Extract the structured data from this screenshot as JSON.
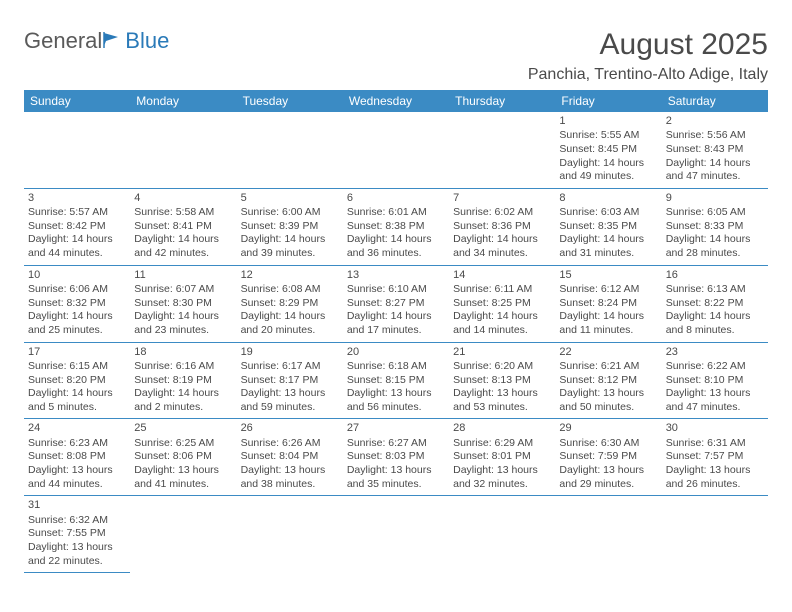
{
  "logo": {
    "part1": "General",
    "part2": "Blue"
  },
  "title": "August 2025",
  "location": "Panchia, Trentino-Alto Adige, Italy",
  "colors": {
    "header_bg": "#3b8bc4",
    "header_fg": "#ffffff",
    "rule": "#3b8bc4",
    "text": "#4a4a4a",
    "accent": "#2a7ab8"
  },
  "header_fontsize": 30,
  "location_fontsize": 16,
  "dayhdr_fontsize": 12,
  "cell_fontsize": 10.5,
  "days": [
    "Sunday",
    "Monday",
    "Tuesday",
    "Wednesday",
    "Thursday",
    "Friday",
    "Saturday"
  ],
  "weeks": [
    [
      null,
      null,
      null,
      null,
      null,
      {
        "n": "1",
        "sr": "Sunrise: 5:55 AM",
        "ss": "Sunset: 8:45 PM",
        "dl1": "Daylight: 14 hours",
        "dl2": "and 49 minutes."
      },
      {
        "n": "2",
        "sr": "Sunrise: 5:56 AM",
        "ss": "Sunset: 8:43 PM",
        "dl1": "Daylight: 14 hours",
        "dl2": "and 47 minutes."
      }
    ],
    [
      {
        "n": "3",
        "sr": "Sunrise: 5:57 AM",
        "ss": "Sunset: 8:42 PM",
        "dl1": "Daylight: 14 hours",
        "dl2": "and 44 minutes."
      },
      {
        "n": "4",
        "sr": "Sunrise: 5:58 AM",
        "ss": "Sunset: 8:41 PM",
        "dl1": "Daylight: 14 hours",
        "dl2": "and 42 minutes."
      },
      {
        "n": "5",
        "sr": "Sunrise: 6:00 AM",
        "ss": "Sunset: 8:39 PM",
        "dl1": "Daylight: 14 hours",
        "dl2": "and 39 minutes."
      },
      {
        "n": "6",
        "sr": "Sunrise: 6:01 AM",
        "ss": "Sunset: 8:38 PM",
        "dl1": "Daylight: 14 hours",
        "dl2": "and 36 minutes."
      },
      {
        "n": "7",
        "sr": "Sunrise: 6:02 AM",
        "ss": "Sunset: 8:36 PM",
        "dl1": "Daylight: 14 hours",
        "dl2": "and 34 minutes."
      },
      {
        "n": "8",
        "sr": "Sunrise: 6:03 AM",
        "ss": "Sunset: 8:35 PM",
        "dl1": "Daylight: 14 hours",
        "dl2": "and 31 minutes."
      },
      {
        "n": "9",
        "sr": "Sunrise: 6:05 AM",
        "ss": "Sunset: 8:33 PM",
        "dl1": "Daylight: 14 hours",
        "dl2": "and 28 minutes."
      }
    ],
    [
      {
        "n": "10",
        "sr": "Sunrise: 6:06 AM",
        "ss": "Sunset: 8:32 PM",
        "dl1": "Daylight: 14 hours",
        "dl2": "and 25 minutes."
      },
      {
        "n": "11",
        "sr": "Sunrise: 6:07 AM",
        "ss": "Sunset: 8:30 PM",
        "dl1": "Daylight: 14 hours",
        "dl2": "and 23 minutes."
      },
      {
        "n": "12",
        "sr": "Sunrise: 6:08 AM",
        "ss": "Sunset: 8:29 PM",
        "dl1": "Daylight: 14 hours",
        "dl2": "and 20 minutes."
      },
      {
        "n": "13",
        "sr": "Sunrise: 6:10 AM",
        "ss": "Sunset: 8:27 PM",
        "dl1": "Daylight: 14 hours",
        "dl2": "and 17 minutes."
      },
      {
        "n": "14",
        "sr": "Sunrise: 6:11 AM",
        "ss": "Sunset: 8:25 PM",
        "dl1": "Daylight: 14 hours",
        "dl2": "and 14 minutes."
      },
      {
        "n": "15",
        "sr": "Sunrise: 6:12 AM",
        "ss": "Sunset: 8:24 PM",
        "dl1": "Daylight: 14 hours",
        "dl2": "and 11 minutes."
      },
      {
        "n": "16",
        "sr": "Sunrise: 6:13 AM",
        "ss": "Sunset: 8:22 PM",
        "dl1": "Daylight: 14 hours",
        "dl2": "and 8 minutes."
      }
    ],
    [
      {
        "n": "17",
        "sr": "Sunrise: 6:15 AM",
        "ss": "Sunset: 8:20 PM",
        "dl1": "Daylight: 14 hours",
        "dl2": "and 5 minutes."
      },
      {
        "n": "18",
        "sr": "Sunrise: 6:16 AM",
        "ss": "Sunset: 8:19 PM",
        "dl1": "Daylight: 14 hours",
        "dl2": "and 2 minutes."
      },
      {
        "n": "19",
        "sr": "Sunrise: 6:17 AM",
        "ss": "Sunset: 8:17 PM",
        "dl1": "Daylight: 13 hours",
        "dl2": "and 59 minutes."
      },
      {
        "n": "20",
        "sr": "Sunrise: 6:18 AM",
        "ss": "Sunset: 8:15 PM",
        "dl1": "Daylight: 13 hours",
        "dl2": "and 56 minutes."
      },
      {
        "n": "21",
        "sr": "Sunrise: 6:20 AM",
        "ss": "Sunset: 8:13 PM",
        "dl1": "Daylight: 13 hours",
        "dl2": "and 53 minutes."
      },
      {
        "n": "22",
        "sr": "Sunrise: 6:21 AM",
        "ss": "Sunset: 8:12 PM",
        "dl1": "Daylight: 13 hours",
        "dl2": "and 50 minutes."
      },
      {
        "n": "23",
        "sr": "Sunrise: 6:22 AM",
        "ss": "Sunset: 8:10 PM",
        "dl1": "Daylight: 13 hours",
        "dl2": "and 47 minutes."
      }
    ],
    [
      {
        "n": "24",
        "sr": "Sunrise: 6:23 AM",
        "ss": "Sunset: 8:08 PM",
        "dl1": "Daylight: 13 hours",
        "dl2": "and 44 minutes."
      },
      {
        "n": "25",
        "sr": "Sunrise: 6:25 AM",
        "ss": "Sunset: 8:06 PM",
        "dl1": "Daylight: 13 hours",
        "dl2": "and 41 minutes."
      },
      {
        "n": "26",
        "sr": "Sunrise: 6:26 AM",
        "ss": "Sunset: 8:04 PM",
        "dl1": "Daylight: 13 hours",
        "dl2": "and 38 minutes."
      },
      {
        "n": "27",
        "sr": "Sunrise: 6:27 AM",
        "ss": "Sunset: 8:03 PM",
        "dl1": "Daylight: 13 hours",
        "dl2": "and 35 minutes."
      },
      {
        "n": "28",
        "sr": "Sunrise: 6:29 AM",
        "ss": "Sunset: 8:01 PM",
        "dl1": "Daylight: 13 hours",
        "dl2": "and 32 minutes."
      },
      {
        "n": "29",
        "sr": "Sunrise: 6:30 AM",
        "ss": "Sunset: 7:59 PM",
        "dl1": "Daylight: 13 hours",
        "dl2": "and 29 minutes."
      },
      {
        "n": "30",
        "sr": "Sunrise: 6:31 AM",
        "ss": "Sunset: 7:57 PM",
        "dl1": "Daylight: 13 hours",
        "dl2": "and 26 minutes."
      }
    ],
    [
      {
        "n": "31",
        "sr": "Sunrise: 6:32 AM",
        "ss": "Sunset: 7:55 PM",
        "dl1": "Daylight: 13 hours",
        "dl2": "and 22 minutes."
      },
      null,
      null,
      null,
      null,
      null,
      null
    ]
  ]
}
